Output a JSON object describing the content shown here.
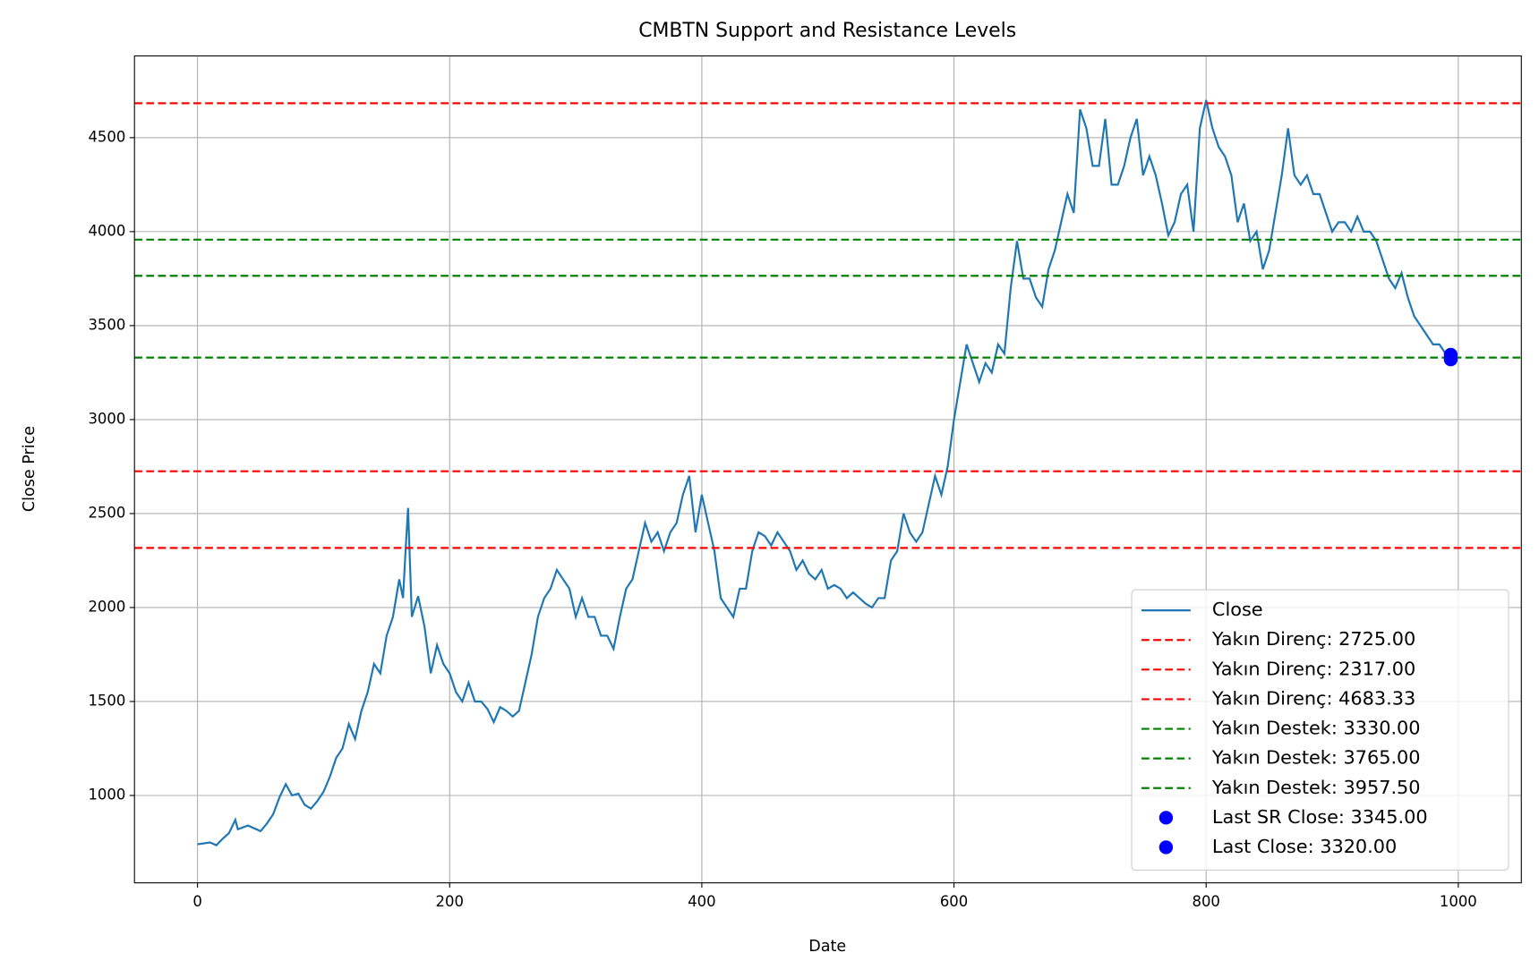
{
  "chart_data": {
    "type": "line",
    "title": "CMBTN Support and Resistance Levels",
    "xlabel": "Date",
    "ylabel": "Close Price",
    "xlim": [
      -50,
      1050
    ],
    "ylim": [
      535,
      4935
    ],
    "xticks": [
      0,
      200,
      400,
      600,
      800,
      1000
    ],
    "yticks": [
      1000,
      1500,
      2000,
      2500,
      3000,
      3500,
      4000,
      4500
    ],
    "grid": true,
    "legend": "lower right",
    "x": [
      0,
      10,
      15,
      20,
      25,
      30,
      32,
      40,
      50,
      55,
      60,
      65,
      70,
      75,
      80,
      85,
      90,
      95,
      100,
      105,
      110,
      115,
      120,
      125,
      130,
      135,
      140,
      145,
      150,
      155,
      160,
      163,
      165,
      167,
      170,
      175,
      180,
      185,
      190,
      195,
      200,
      205,
      210,
      215,
      220,
      225,
      230,
      235,
      240,
      245,
      250,
      255,
      260,
      265,
      270,
      275,
      280,
      285,
      290,
      295,
      300,
      305,
      310,
      315,
      320,
      325,
      330,
      335,
      340,
      345,
      350,
      355,
      360,
      365,
      370,
      375,
      380,
      385,
      390,
      395,
      400,
      405,
      410,
      415,
      420,
      425,
      430,
      435,
      440,
      445,
      450,
      455,
      460,
      465,
      470,
      475,
      480,
      485,
      490,
      495,
      500,
      505,
      510,
      515,
      520,
      525,
      530,
      535,
      540,
      545,
      550,
      555,
      560,
      565,
      570,
      575,
      580,
      585,
      590,
      595,
      600,
      605,
      610,
      615,
      620,
      625,
      630,
      635,
      640,
      645,
      650,
      655,
      660,
      665,
      670,
      675,
      680,
      685,
      690,
      695,
      700,
      705,
      710,
      715,
      720,
      725,
      730,
      735,
      740,
      745,
      750,
      755,
      760,
      765,
      770,
      775,
      780,
      785,
      790,
      795,
      800,
      805,
      810,
      815,
      820,
      825,
      830,
      835,
      840,
      845,
      850,
      855,
      860,
      865,
      870,
      875,
      880,
      885,
      890,
      895,
      900,
      905,
      910,
      915,
      920,
      925,
      930,
      935,
      940,
      945,
      950,
      955,
      960,
      965,
      970,
      975,
      980,
      985,
      990,
      995,
      999
    ],
    "series": [
      {
        "name": "Close",
        "color": "#1f77b4",
        "values": [
          740,
          750,
          735,
          770,
          800,
          870,
          820,
          840,
          810,
          850,
          900,
          990,
          1060,
          1000,
          1010,
          950,
          930,
          970,
          1020,
          1100,
          1200,
          1250,
          1380,
          1300,
          1450,
          1550,
          1700,
          1650,
          1850,
          1950,
          2150,
          2050,
          2300,
          2530,
          1950,
          2060,
          1900,
          1650,
          1800,
          1700,
          1650,
          1550,
          1500,
          1600,
          1500,
          1500,
          1460,
          1390,
          1470,
          1450,
          1420,
          1450,
          1600,
          1750,
          1950,
          2050,
          2100,
          2200,
          2150,
          2100,
          1950,
          2050,
          1950,
          1950,
          1850,
          1850,
          1780,
          1950,
          2100,
          2150,
          2300,
          2450,
          2350,
          2400,
          2300,
          2400,
          2450,
          2600,
          2700,
          2400,
          2600,
          2450,
          2300,
          2050,
          2000,
          1950,
          2100,
          2100,
          2300,
          2400,
          2380,
          2330,
          2400,
          2350,
          2300,
          2200,
          2250,
          2180,
          2150,
          2200,
          2100,
          2120,
          2100,
          2050,
          2080,
          2050,
          2020,
          2000,
          2050,
          2050,
          2250,
          2300,
          2500,
          2400,
          2350,
          2400,
          2550,
          2700,
          2600,
          2750,
          3000,
          3200,
          3400,
          3300,
          3200,
          3300,
          3250,
          3400,
          3350,
          3700,
          3950,
          3750,
          3750,
          3650,
          3600,
          3800,
          3900,
          4050,
          4200,
          4100,
          4650,
          4550,
          4350,
          4350,
          4600,
          4250,
          4250,
          4350,
          4500,
          4600,
          4300,
          4400,
          4300,
          4150,
          3980,
          4050,
          4200,
          4250,
          4000,
          4550,
          4700,
          4550,
          4450,
          4400,
          4300,
          4050,
          4150,
          3950,
          4000,
          3800,
          3900,
          4100,
          4300,
          4550,
          4300,
          4250,
          4300,
          4200,
          4200,
          4100,
          4000,
          4050,
          4050,
          4000,
          4080,
          4000,
          4000,
          3950,
          3850,
          3750,
          3700,
          3780,
          3650,
          3550,
          3500,
          3450,
          3400,
          3400,
          3350,
          3345,
          3320
        ]
      }
    ],
    "hlines": [
      {
        "name": "Yakın Direnç: 2725.00",
        "color": "red",
        "value": 2725
      },
      {
        "name": "Yakın Direnç: 2317.00",
        "color": "red",
        "value": 2317
      },
      {
        "name": "Yakın Direnç: 4683.33",
        "color": "red",
        "value": 4683.33
      },
      {
        "name": "Yakın Destek: 3330.00",
        "color": "green",
        "value": 3330
      },
      {
        "name": "Yakın Destek: 3765.00",
        "color": "green",
        "value": 3765
      },
      {
        "name": "Yakın Destek: 3957.50",
        "color": "green",
        "value": 3957.5
      }
    ],
    "points": [
      {
        "name": "Last SR Close: 3345.00",
        "color": "blue",
        "x": 994,
        "y": 3345
      },
      {
        "name": "Last Close: 3320.00",
        "color": "blue",
        "x": 994,
        "y": 3320
      }
    ]
  }
}
